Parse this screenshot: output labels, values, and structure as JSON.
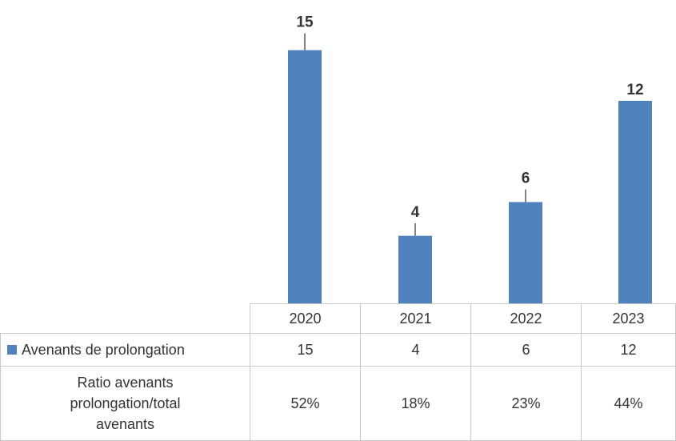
{
  "chart_data": {
    "type": "bar",
    "categories": [
      "2020",
      "2021",
      "2022",
      "2023"
    ],
    "series": [
      {
        "name": "Avenants de prolongation",
        "values": [
          15,
          4,
          6,
          12
        ],
        "color": "#4f81bd"
      }
    ],
    "data_labels": [
      "15",
      "4",
      "6",
      "12"
    ],
    "ylim": [
      0,
      17.5
    ],
    "error_bars": "small positive error bars on 2020, 2021 and 2022",
    "grid": false,
    "legend": "data table"
  },
  "data_table": {
    "categories": [
      "2020",
      "2021",
      "2022",
      "2023"
    ],
    "series_label": "Avenants de prolongation",
    "series_values": [
      "15",
      "4",
      "6",
      "12"
    ],
    "ratio_label_lines": [
      "Ratio avenants",
      "prolongation/total",
      "avenants"
    ],
    "ratio_values": [
      "52%",
      "18%",
      "23%",
      "44%"
    ]
  }
}
